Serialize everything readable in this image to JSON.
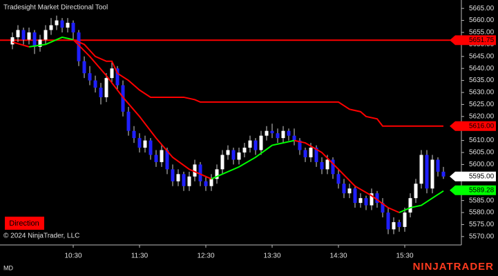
{
  "chart_data": {
    "type": "candlestick",
    "title": "Tradesight Market Directional Tool",
    "copyright": "© 2024 NinjaTrader, LLC",
    "button": "Direction",
    "footer_left": "MD",
    "brand": "NINJATRADER",
    "up_color": "#ffffff",
    "down_color": "#1f1fff",
    "x": [
      "09:35",
      "09:40",
      "09:45",
      "09:50",
      "09:55",
      "10:00",
      "10:05",
      "10:10",
      "10:15",
      "10:20",
      "10:25",
      "10:30",
      "10:35",
      "10:40",
      "10:45",
      "10:50",
      "10:55",
      "11:00",
      "11:05",
      "11:10",
      "11:15",
      "11:20",
      "11:25",
      "11:30",
      "11:35",
      "11:40",
      "11:45",
      "11:50",
      "11:55",
      "12:00",
      "12:05",
      "12:10",
      "12:15",
      "12:20",
      "12:25",
      "12:30",
      "12:35",
      "12:40",
      "12:45",
      "12:50",
      "12:55",
      "13:00",
      "13:05",
      "13:10",
      "13:15",
      "13:20",
      "13:25",
      "13:30",
      "13:35",
      "13:40",
      "13:45",
      "13:50",
      "13:55",
      "14:00",
      "14:05",
      "14:10",
      "14:15",
      "14:20",
      "14:25",
      "14:30",
      "14:35",
      "14:40",
      "14:45",
      "14:50",
      "14:55",
      "15:00",
      "15:05",
      "15:10",
      "15:15",
      "15:20",
      "15:25",
      "15:30",
      "15:35",
      "15:40",
      "15:45",
      "15:50",
      "15:55",
      "16:00",
      "16:05"
    ],
    "open": [
      5650,
      5653,
      5656,
      5652,
      5655,
      5649,
      5652,
      5656,
      5658,
      5660,
      5657,
      5659,
      5655,
      5643,
      5638,
      5635,
      5632,
      5628,
      5636,
      5640,
      5633,
      5622,
      5614,
      5611,
      5607,
      5610,
      5604,
      5601,
      5606,
      5598,
      5593,
      5596,
      5591,
      5595,
      5600,
      5593,
      5591,
      5594,
      5598,
      5604,
      5606,
      5602,
      5605,
      5607,
      5610,
      5606,
      5612,
      5614,
      5613,
      5611,
      5614,
      5612,
      5610,
      5606,
      5603,
      5607,
      5601,
      5598,
      5602,
      5596,
      5592,
      5588,
      5590,
      5584,
      5586,
      5583,
      5588,
      5584,
      5580,
      5573,
      5576,
      5574,
      5580,
      5586,
      5592,
      5604,
      5590,
      5602,
      5597
    ],
    "high": [
      5655,
      5658,
      5657,
      5657,
      5656,
      5654,
      5658,
      5661,
      5662,
      5661,
      5661,
      5660,
      5656,
      5645,
      5641,
      5637,
      5634,
      5638,
      5643,
      5641,
      5635,
      5624,
      5616,
      5613,
      5612,
      5611,
      5606,
      5608,
      5607,
      5600,
      5598,
      5597,
      5597,
      5602,
      5601,
      5595,
      5596,
      5600,
      5606,
      5608,
      5607,
      5607,
      5609,
      5612,
      5611,
      5614,
      5616,
      5617,
      5615,
      5616,
      5615,
      5615,
      5611,
      5607,
      5609,
      5608,
      5603,
      5604,
      5603,
      5598,
      5594,
      5592,
      5591,
      5588,
      5587,
      5590,
      5589,
      5586,
      5582,
      5578,
      5577,
      5582,
      5588,
      5594,
      5606,
      5606,
      5604,
      5603,
      5599
    ],
    "low": [
      5648,
      5651,
      5650,
      5650,
      5646,
      5647,
      5650,
      5654,
      5656,
      5655,
      5655,
      5652,
      5641,
      5636,
      5633,
      5630,
      5625,
      5626,
      5634,
      5631,
      5620,
      5612,
      5609,
      5605,
      5605,
      5602,
      5599,
      5599,
      5596,
      5591,
      5591,
      5589,
      5589,
      5593,
      5591,
      5589,
      5589,
      5592,
      5596,
      5602,
      5600,
      5600,
      5603,
      5605,
      5604,
      5604,
      5610,
      5611,
      5609,
      5609,
      5610,
      5608,
      5604,
      5601,
      5601,
      5599,
      5596,
      5596,
      5594,
      5590,
      5586,
      5586,
      5582,
      5582,
      5581,
      5581,
      5582,
      5578,
      5571,
      5571,
      5572,
      5572,
      5578,
      5584,
      5590,
      5588,
      5588,
      5595,
      5594
    ],
    "close": [
      5653,
      5656,
      5652,
      5655,
      5649,
      5652,
      5656,
      5658,
      5660,
      5657,
      5659,
      5655,
      5643,
      5638,
      5635,
      5632,
      5628,
      5636,
      5640,
      5633,
      5622,
      5614,
      5611,
      5607,
      5610,
      5604,
      5601,
      5606,
      5598,
      5593,
      5596,
      5591,
      5595,
      5600,
      5593,
      5591,
      5594,
      5598,
      5604,
      5606,
      5602,
      5605,
      5607,
      5610,
      5606,
      5612,
      5614,
      5613,
      5611,
      5614,
      5612,
      5610,
      5606,
      5603,
      5607,
      5601,
      5598,
      5602,
      5596,
      5592,
      5588,
      5590,
      5584,
      5586,
      5583,
      5588,
      5584,
      5580,
      5573,
      5576,
      5574,
      5580,
      5586,
      5592,
      5604,
      5590,
      5602,
      5597,
      5595
    ],
    "level": 5651.75,
    "level_color": "#ff0000",
    "slow_line": {
      "color": "#ff0000",
      "x": [
        "10:30",
        "10:40",
        "10:50",
        "11:00",
        "11:05",
        "11:10",
        "11:20",
        "11:30",
        "11:40",
        "11:45",
        "12:10",
        "12:20",
        "12:25",
        "14:30",
        "14:40",
        "14:50",
        "14:55",
        "15:05",
        "15:10",
        "16:05"
      ],
      "values": [
        5652,
        5650,
        5645,
        5643,
        5643,
        5638,
        5635,
        5631,
        5628,
        5628,
        5628,
        5627,
        5626,
        5626,
        5623,
        5622,
        5620,
        5619,
        5616,
        5616
      ]
    },
    "fast_line": {
      "x": [
        "09:35",
        "09:50",
        "10:05",
        "10:20",
        "10:30",
        "10:45",
        "11:00",
        "11:15",
        "11:30",
        "11:45",
        "12:00",
        "12:15",
        "12:35",
        "12:45",
        "13:00",
        "13:15",
        "13:30",
        "13:50",
        "14:00",
        "14:15",
        "14:30",
        "14:45",
        "15:00",
        "15:15",
        "15:25",
        "15:35",
        "15:45",
        "16:05"
      ],
      "series": [
        {
          "color": "#ff0000",
          "values": [
            5651,
            5649,
            null,
            null,
            5652,
            5645,
            5637,
            5628,
            5620,
            5611,
            5603,
            5598,
            5594,
            null,
            null,
            null,
            null,
            5610,
            5609,
            5605,
            5598,
            5591,
            5587,
            5582,
            5580,
            null,
            null,
            null
          ]
        },
        {
          "color": "#00ff00",
          "values": [
            null,
            5649,
            5650,
            5653,
            5652,
            null,
            null,
            null,
            null,
            null,
            null,
            null,
            5594,
            5596,
            5599,
            5603,
            5608,
            5610,
            null,
            null,
            null,
            null,
            null,
            null,
            5580,
            5582,
            5583,
            5589
          ]
        }
      ]
    },
    "markers": [
      {
        "value": 5651.75,
        "color": "#ff0000",
        "text_color": "#000000"
      },
      {
        "value": {
          "value": 5616,
          "label": "5616.00"
        },
        "color": "#ff0000",
        "text_color": "#000000"
      },
      {
        "value": {
          "value": 5595,
          "label": "5595.00"
        },
        "color": "#ffffff",
        "text_color": "#000000"
      },
      {
        "value": 5589.28,
        "color": "#00ff00",
        "text_color": "#000000"
      }
    ],
    "ylim": [
      5566.5,
      5668.5
    ],
    "yticks": [
      {
        "value": 5570,
        "label": "5570.00"
      },
      {
        "value": 5575,
        "label": "5575.00"
      },
      {
        "value": 5580,
        "label": "5580.00"
      },
      {
        "value": 5585,
        "label": "5585.00"
      },
      {
        "value": 5590,
        "label": "5590.00"
      },
      {
        "value": 5595,
        "label": "5595.00"
      },
      {
        "value": 5600,
        "label": "5600.00"
      },
      {
        "value": 5605,
        "label": "5605.00"
      },
      {
        "value": 5610,
        "label": "5610.00"
      },
      {
        "value": 5615,
        "label": "5615.00"
      },
      {
        "value": 5620,
        "label": "5620.00"
      },
      {
        "value": 5625,
        "label": "5625.00"
      },
      {
        "value": 5630,
        "label": "5630.00"
      },
      {
        "value": 5635,
        "label": "5635.00"
      },
      {
        "value": 5640,
        "label": "5640.00"
      },
      {
        "value": 5645,
        "label": "5645.00"
      },
      {
        "value": 5650,
        "label": "5650.00"
      },
      {
        "value": 5655,
        "label": "5655.00"
      },
      {
        "value": 5660,
        "label": "5660.00"
      },
      {
        "value": 5665,
        "label": "5665.00"
      }
    ],
    "xticks": [
      "10:30",
      "11:30",
      "12:30",
      "13:30",
      "14:30",
      "15:30"
    ]
  }
}
